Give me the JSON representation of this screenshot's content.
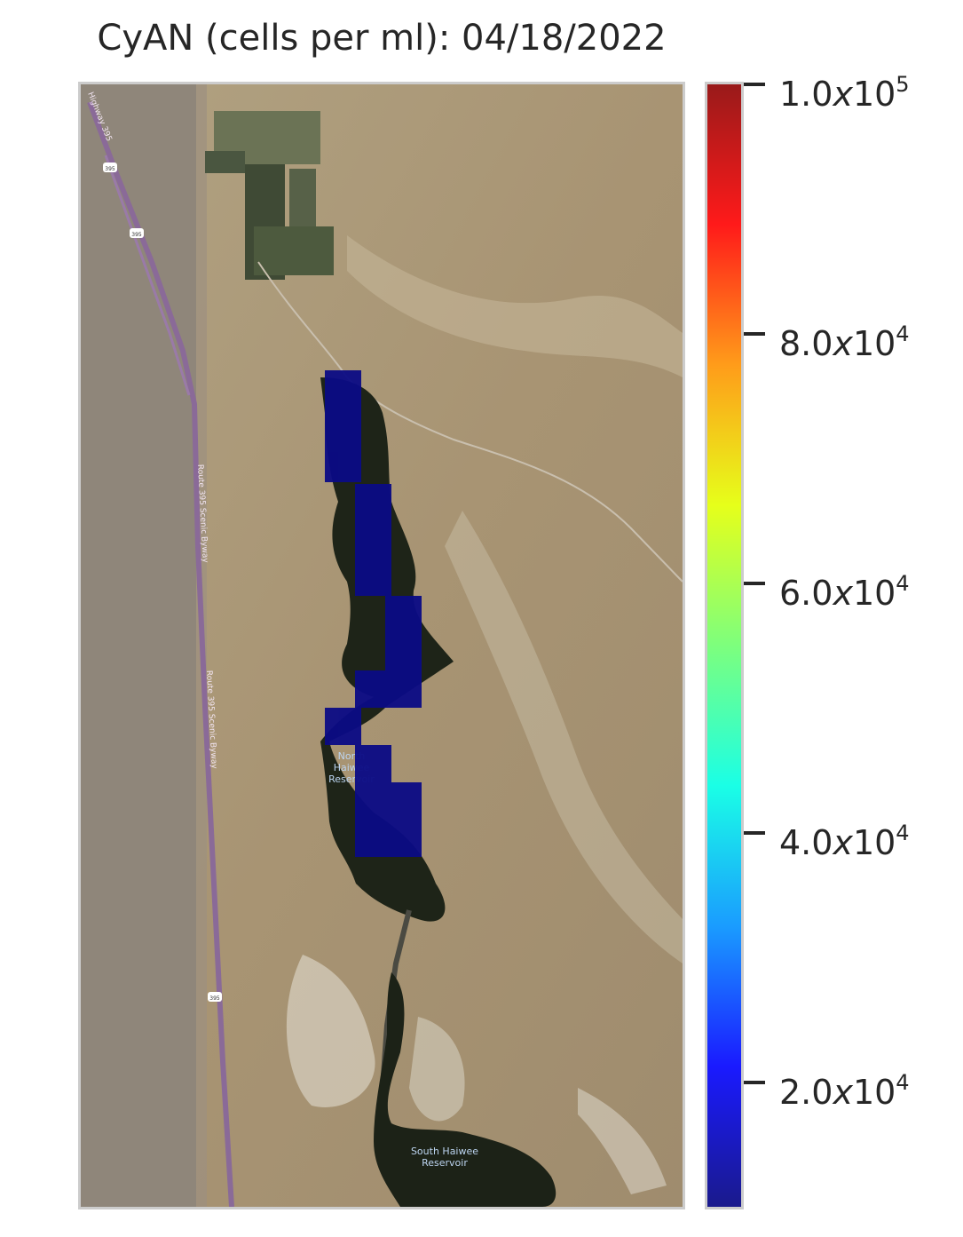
{
  "title": "CyAN (cells per ml): 04/18/2022",
  "map": {
    "labels": {
      "north_reservoir": [
        "North",
        "Haiwee",
        "Reservoir"
      ],
      "south_reservoir": [
        "South Haiwee",
        "Reservoir"
      ],
      "road_route_scenic_1": "Route 395 Scenic Byway",
      "road_route_scenic_2": "Route 395 Scenic Byway",
      "road_highway": "Highway 395",
      "shield": "395"
    },
    "pixel_color": "#0b0b85"
  },
  "colorbar": {
    "ticks": [
      {
        "mantissa": "1.0",
        "exp": "5",
        "value": 100000
      },
      {
        "mantissa": "8.0",
        "exp": "4",
        "value": 80000
      },
      {
        "mantissa": "6.0",
        "exp": "4",
        "value": 60000
      },
      {
        "mantissa": "4.0",
        "exp": "4",
        "value": 40000
      },
      {
        "mantissa": "2.0",
        "exp": "4",
        "value": 20000
      }
    ],
    "range": [
      10000,
      100000
    ],
    "colormap": "jet",
    "colors": [
      "#1a1a8c",
      "#1a1aff",
      "#1a9cff",
      "#1affe6",
      "#7dff7d",
      "#e6ff1a",
      "#ff9c1a",
      "#ff1a1a",
      "#991a1a"
    ]
  }
}
